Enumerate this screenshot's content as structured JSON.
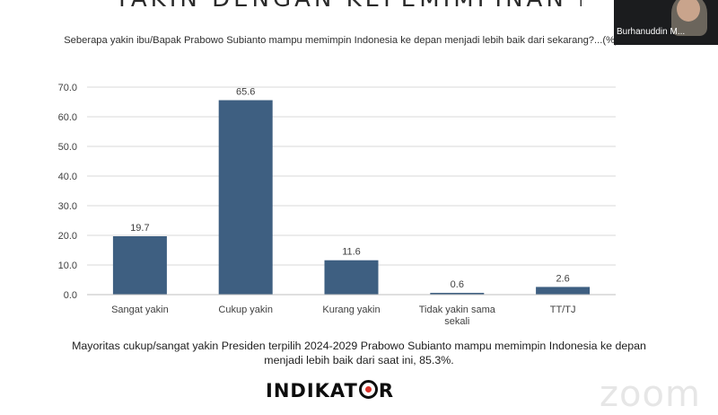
{
  "slide_title": "YAKIN DENGAN KEPEMIMPINAN PRABOWO?",
  "question": "Seberapa yakin ibu/Bapak Prabowo Subianto mampu memimpin Indonesia ke depan menjadi lebih baik dari sekarang?...(%)",
  "footer_line1": "Mayoritas cukup/sangat yakin Presiden terpilih 2024-2029 Prabowo Subianto mampu memimpin Indonesia ke depan",
  "footer_line2": "menjadi lebih baik dari saat ini, 85.3%.",
  "logo_part1": "INDIKAT",
  "logo_part2": "R",
  "participant_name": "Burhanuddin M...",
  "watermark": "zoom",
  "colors": {
    "bar": "#3e5f81",
    "grid": "#d9d9d9",
    "axis_text": "#404040"
  },
  "chart_data": {
    "type": "bar",
    "categories": [
      "Sangat yakin",
      "Cukup yakin",
      "Kurang yakin",
      "Tidak yakin sama sekali",
      "TT/TJ"
    ],
    "category_label_lines": [
      [
        "Sangat yakin"
      ],
      [
        "Cukup yakin"
      ],
      [
        "Kurang yakin"
      ],
      [
        "Tidak yakin sama",
        "sekali"
      ],
      [
        "TT/TJ"
      ]
    ],
    "values": [
      19.7,
      65.6,
      11.6,
      0.6,
      2.6
    ],
    "value_labels": [
      "19.7",
      "65.6",
      "11.6",
      "0.6",
      "2.6"
    ],
    "yticks": [
      "0.0",
      "10.0",
      "20.0",
      "30.0",
      "40.0",
      "50.0",
      "60.0",
      "70.0"
    ],
    "ylim": [
      0,
      70
    ],
    "grid": true,
    "title": "",
    "xlabel": "",
    "ylabel": ""
  }
}
